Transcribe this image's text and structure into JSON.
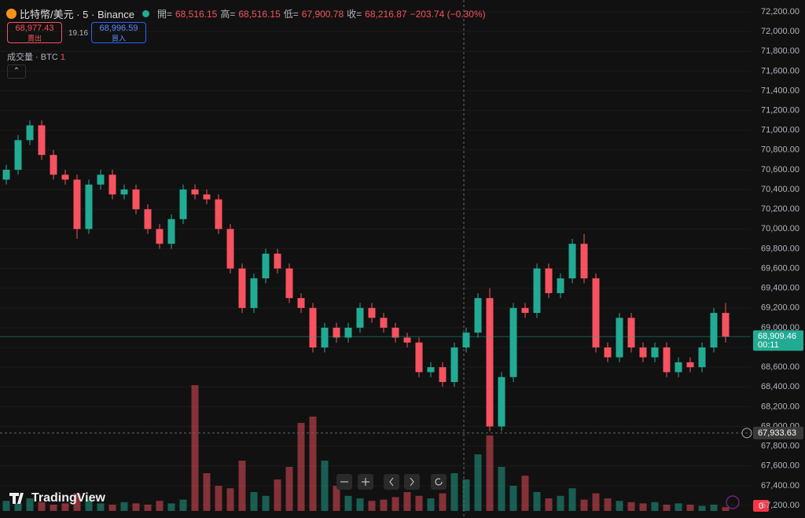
{
  "header": {
    "symbol": "比特幣/美元 · 5 · Binance",
    "open_label": "開=",
    "open": "68,516.15",
    "high_label": "高=",
    "high": "68,516.15",
    "low_label": "低=",
    "low": "67,900.78",
    "close_label": "收=",
    "close": "68,216.87",
    "change": "−203.74 (−0.30%)"
  },
  "trade": {
    "sell_price": "68,977.43",
    "sell_label": "賣出",
    "spread": "19.16",
    "buy_price": "68,996.59",
    "buy_label": "買入"
  },
  "volume_legend": {
    "label": "成交量 · BTC",
    "value": "1"
  },
  "price_tags": {
    "countdown": "00:11",
    "volume": "0"
  },
  "logo": "TradingView",
  "chart_data": {
    "type": "candlestick",
    "up_color": "#22ab94",
    "down_color": "#f7525f",
    "open": [
      70500,
      70600,
      70900,
      71050,
      70750,
      70550,
      70500,
      70000,
      70450,
      70550,
      70350,
      70400,
      70200,
      70000,
      69850,
      70100,
      70400,
      70350,
      70300,
      70000,
      69600,
      69200,
      69500,
      69750,
      69600,
      69300,
      69200,
      68800,
      69000,
      68900,
      69000,
      69200,
      69100,
      69000,
      68900,
      68850,
      68550,
      68600,
      68450,
      68800,
      68950,
      69300,
      68000,
      68500,
      69200,
      69150,
      69600,
      69350,
      69500,
      69850,
      69500,
      68800,
      68700,
      69100,
      68800,
      68700,
      68800,
      68550,
      68650,
      68600,
      68800,
      69150
    ],
    "high": [
      70650,
      70950,
      71100,
      71100,
      70800,
      70600,
      70550,
      70500,
      70600,
      70600,
      70450,
      70450,
      70250,
      70050,
      70150,
      70450,
      70450,
      70400,
      70350,
      70050,
      69650,
      69550,
      69800,
      69800,
      69650,
      69350,
      69250,
      69050,
      69050,
      69050,
      69250,
      69250,
      69150,
      69050,
      68950,
      68900,
      68650,
      68650,
      68850,
      69000,
      69350,
      69400,
      68550,
      69250,
      69250,
      69650,
      69650,
      69550,
      69900,
      69950,
      69550,
      68850,
      69150,
      69150,
      68850,
      68850,
      68850,
      68700,
      68700,
      68850,
      69200,
      69250
    ],
    "low": [
      70450,
      70550,
      70850,
      70700,
      70500,
      70450,
      69900,
      69950,
      70400,
      70300,
      70300,
      70150,
      69950,
      69800,
      69800,
      70050,
      70300,
      70250,
      69950,
      69550,
      69150,
      69150,
      69450,
      69550,
      69250,
      69150,
      68750,
      68750,
      68850,
      68850,
      68950,
      69050,
      68950,
      68850,
      68800,
      68500,
      68500,
      68400,
      68400,
      68750,
      68900,
      67950,
      67950,
      68450,
      69100,
      69100,
      69300,
      69300,
      69450,
      69450,
      68750,
      68650,
      68650,
      68750,
      68650,
      68650,
      68500,
      68500,
      68550,
      68550,
      68750,
      68850
    ],
    "close": [
      70600,
      70900,
      71050,
      70750,
      70550,
      70500,
      70000,
      70450,
      70550,
      70350,
      70400,
      70200,
      70000,
      69850,
      70100,
      70400,
      70350,
      70300,
      70000,
      69600,
      69200,
      69500,
      69750,
      69600,
      69300,
      69200,
      68800,
      69000,
      68900,
      69000,
      69200,
      69100,
      69000,
      68900,
      68850,
      68550,
      68600,
      68450,
      68800,
      68950,
      69300,
      68000,
      68500,
      69200,
      69150,
      69600,
      69350,
      69500,
      69850,
      69500,
      68800,
      68700,
      69100,
      68800,
      68700,
      68800,
      68550,
      68650,
      68600,
      68800,
      69150,
      68909.46
    ],
    "volume": [
      8,
      6,
      10,
      7,
      5,
      6,
      14,
      9,
      6,
      5,
      7,
      6,
      5,
      8,
      6,
      9,
      100,
      30,
      20,
      18,
      40,
      15,
      12,
      25,
      35,
      70,
      75,
      40,
      20,
      12,
      10,
      8,
      9,
      11,
      15,
      12,
      10,
      14,
      30,
      25,
      45,
      60,
      35,
      20,
      28,
      15,
      10,
      12,
      18,
      9,
      14,
      10,
      8,
      7,
      6,
      7,
      5,
      6,
      5,
      4,
      5,
      3
    ],
    "last_price": {
      "value": 68909.46,
      "label": "68,909.46"
    },
    "crosshair_price": {
      "value": 67933.63,
      "label": "67,933.63"
    },
    "ylim": [
      67200,
      72200
    ],
    "yticks": [
      {
        "value": 67200,
        "label": "67,200.00"
      },
      {
        "value": 67400,
        "label": "67,400.00"
      },
      {
        "value": 67600,
        "label": "67,600.00"
      },
      {
        "value": 67800,
        "label": "67,800.00"
      },
      {
        "value": 68000,
        "label": "68,000.00"
      },
      {
        "value": 68200,
        "label": "68,200.00"
      },
      {
        "value": 68400,
        "label": "68,400.00"
      },
      {
        "value": 68600,
        "label": "68,600.00"
      },
      {
        "value": 68800,
        "label": "68,800.00"
      },
      {
        "value": 69000,
        "label": "69,000.00"
      },
      {
        "value": 69200,
        "label": "69,200.00"
      },
      {
        "value": 69400,
        "label": "69,400.00"
      },
      {
        "value": 69600,
        "label": "69,600.00"
      },
      {
        "value": 69800,
        "label": "69,800.00"
      },
      {
        "value": 70000,
        "label": "70,000.00"
      },
      {
        "value": 70200,
        "label": "70,200.00"
      },
      {
        "value": 70400,
        "label": "70,400.00"
      },
      {
        "value": 70600,
        "label": "70,600.00"
      },
      {
        "value": 70800,
        "label": "70,800.00"
      },
      {
        "value": 71000,
        "label": "71,000.00"
      },
      {
        "value": 71200,
        "label": "71,200.00"
      },
      {
        "value": 71400,
        "label": "71,400.00"
      },
      {
        "value": 71600,
        "label": "71,600.00"
      },
      {
        "value": 71800,
        "label": "71,800.00"
      },
      {
        "value": 72000,
        "label": "72,000.00"
      },
      {
        "value": 72200,
        "label": "72,200.00"
      }
    ]
  }
}
